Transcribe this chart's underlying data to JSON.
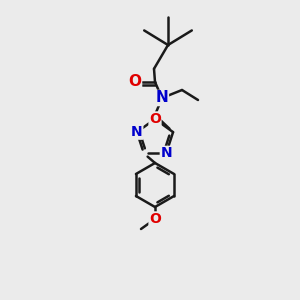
{
  "bg_color": "#ebebeb",
  "bond_color": "#1a1a1a",
  "bond_width": 1.8,
  "atom_colors": {
    "O": "#e00000",
    "N": "#0000cc",
    "C": "#1a1a1a"
  },
  "font_size_atom": 10,
  "fig_size": [
    3.0,
    3.0
  ],
  "dpi": 100
}
